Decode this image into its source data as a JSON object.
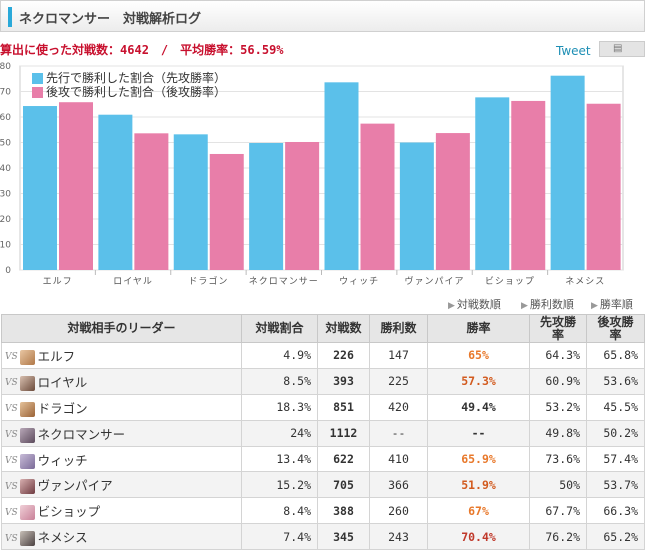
{
  "header": {
    "title": "ネクロマンサー　対戦解析ログ"
  },
  "summary": {
    "battles_label": "算出に使った対戦数：",
    "battles": "4642",
    "sep": "　/　",
    "avg_label": "平均勝率：",
    "avg": "56.59%"
  },
  "tweet": {
    "label": "Tweet",
    "icon": "save-icon"
  },
  "colors": {
    "first": "#5bc0ea",
    "second": "#e87ea9",
    "high": "#e8782a",
    "mid": "#d25a1e",
    "winred": "#c0392b"
  },
  "chart_data": {
    "type": "bar",
    "categories": [
      "エルフ",
      "ロイヤル",
      "ドラゴン",
      "ネクロマンサー",
      "ウィッチ",
      "ヴァンパイア",
      "ビショップ",
      "ネメシス"
    ],
    "series": [
      {
        "name": "先行で勝利した割合（先攻勝率）",
        "values": [
          64.3,
          60.9,
          53.2,
          49.8,
          73.6,
          50,
          67.7,
          76.2
        ]
      },
      {
        "name": "後攻で勝利した割合（後攻勝率）",
        "values": [
          65.8,
          53.6,
          45.5,
          50.2,
          57.4,
          53.7,
          66.3,
          65.2
        ]
      }
    ],
    "yticks": [
      "0",
      "10",
      "20",
      "30",
      "40",
      "50",
      "60",
      "70",
      "80"
    ],
    "ylim": [
      0,
      80
    ],
    "legend_position": "top-left",
    "grid": true
  },
  "sort": [
    "対戦数順",
    "勝利数順",
    "勝率順"
  ],
  "table": {
    "headers": [
      "対戦相手のリーダー",
      "対戦割合",
      "対戦数",
      "勝利数",
      "勝率",
      "先攻勝\n率",
      "後攻勝\n率"
    ],
    "vs": "VS",
    "rows": [
      {
        "leader": "エルフ",
        "ratio": "4.9%",
        "battles": "226",
        "wins": "147",
        "rate": "65%",
        "first": "64.3%",
        "second": "65.8%",
        "tone": "high"
      },
      {
        "leader": "ロイヤル",
        "ratio": "8.5%",
        "battles": "393",
        "wins": "225",
        "rate": "57.3%",
        "first": "60.9%",
        "second": "53.6%",
        "tone": "mid"
      },
      {
        "leader": "ドラゴン",
        "ratio": "18.3%",
        "battles": "851",
        "wins": "420",
        "rate": "49.4%",
        "first": "53.2%",
        "second": "45.5%",
        "tone": "low"
      },
      {
        "leader": "ネクロマンサー",
        "ratio": "24%",
        "battles": "1112",
        "wins": "--",
        "rate": "--",
        "first": "49.8%",
        "second": "50.2%",
        "tone": "low"
      },
      {
        "leader": "ウィッチ",
        "ratio": "13.4%",
        "battles": "622",
        "wins": "410",
        "rate": "65.9%",
        "first": "73.6%",
        "second": "57.4%",
        "tone": "high"
      },
      {
        "leader": "ヴァンパイア",
        "ratio": "15.2%",
        "battles": "705",
        "wins": "366",
        "rate": "51.9%",
        "first": "50%",
        "second": "53.7%",
        "tone": "mid"
      },
      {
        "leader": "ビショップ",
        "ratio": "8.4%",
        "battles": "388",
        "wins": "260",
        "rate": "67%",
        "first": "67.7%",
        "second": "66.3%",
        "tone": "high"
      },
      {
        "leader": "ネメシス",
        "ratio": "7.4%",
        "battles": "345",
        "wins": "243",
        "rate": "70.4%",
        "first": "76.2%",
        "second": "65.2%",
        "tone": "winred"
      }
    ]
  }
}
